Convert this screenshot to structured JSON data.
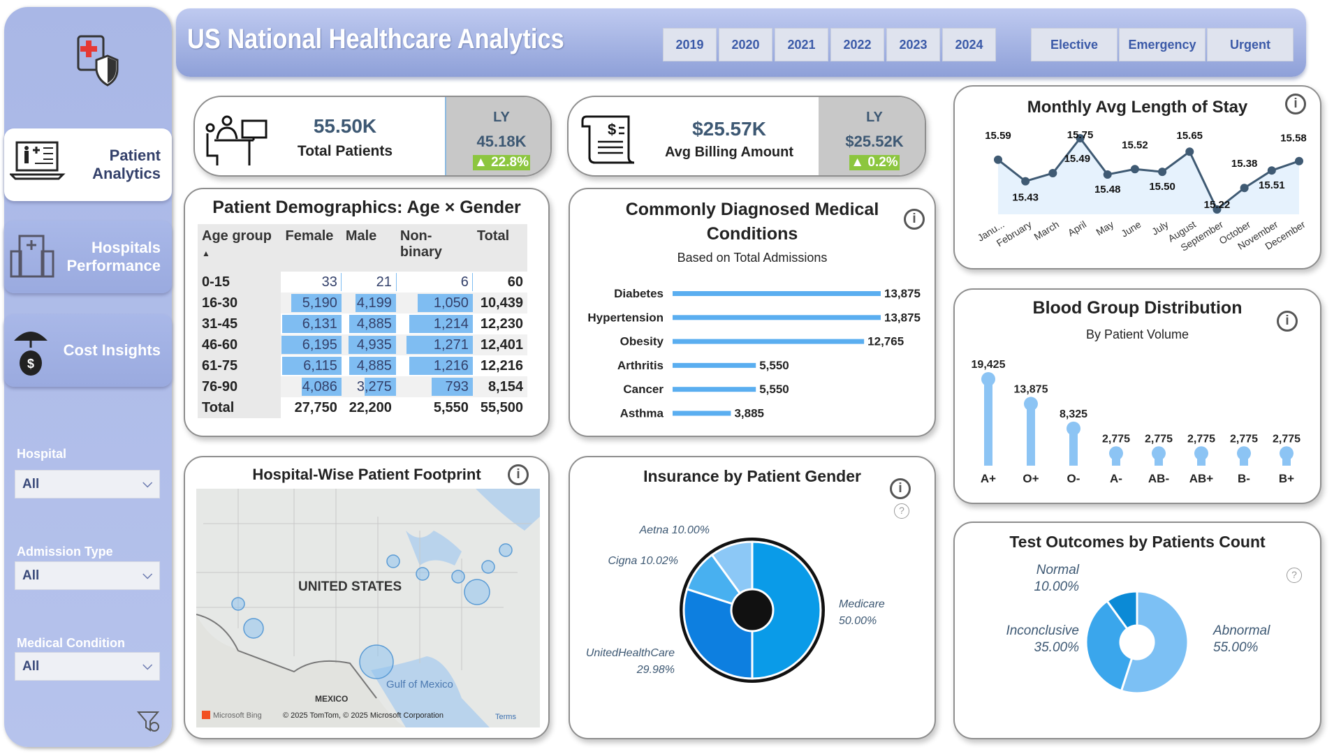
{
  "header": {
    "title": "US National Healthcare Analytics",
    "years": [
      "2019",
      "2020",
      "2021",
      "2022",
      "2023",
      "2024"
    ],
    "admission_types": [
      "Elective",
      "Emergency",
      "Urgent"
    ]
  },
  "sidebar": {
    "nav": [
      {
        "label": "Patient Analytics",
        "active": true
      },
      {
        "label": "Hospitals Performance",
        "active": false
      },
      {
        "label": "Cost Insights",
        "active": false
      }
    ],
    "filters": [
      {
        "label": "Hospital",
        "value": "All"
      },
      {
        "label": "Admission Type",
        "value": "All"
      },
      {
        "label": "Medical Condition",
        "value": "All"
      }
    ]
  },
  "kpis": [
    {
      "value": "55.50K",
      "label": "Total Patients",
      "ly_label": "LY",
      "ly_value": "45.18K",
      "change": "▲ 22.8%"
    },
    {
      "value": "$25.57K",
      "label": "Avg Billing Amount",
      "ly_label": "LY",
      "ly_value": "$25.52K",
      "change": "▲ 0.2%"
    }
  ],
  "colors": {
    "accent": "#5aaef0",
    "positive": "#8cc63f",
    "line": "#3f5a73",
    "area": "#e6f2fd"
  },
  "demographics": {
    "title": "Patient Demographics: Age × Gender",
    "columns": [
      "Age group",
      "Female",
      "Male",
      "Non-binary",
      "Total"
    ],
    "rows": [
      [
        "0-15",
        "33",
        "21",
        "6",
        "60"
      ],
      [
        "16-30",
        "5,190",
        "4,199",
        "1,050",
        "10,439"
      ],
      [
        "31-45",
        "6,131",
        "4,885",
        "1,214",
        "12,230"
      ],
      [
        "46-60",
        "6,195",
        "4,935",
        "1,271",
        "12,401"
      ],
      [
        "61-75",
        "6,115",
        "4,885",
        "1,216",
        "12,216"
      ],
      [
        "76-90",
        "4,086",
        "3,275",
        "793",
        "8,154"
      ]
    ],
    "total": [
      "Total",
      "27,750",
      "22,200",
      "5,550",
      "55,500"
    ]
  },
  "chart_data": [
    {
      "type": "line",
      "title": "Monthly Avg Length of Stay",
      "categories": [
        "Janu...",
        "February",
        "March",
        "April",
        "May",
        "June",
        "July",
        "August",
        "September",
        "October",
        "November",
        "December"
      ],
      "values": [
        15.59,
        15.43,
        15.49,
        15.75,
        15.48,
        15.52,
        15.5,
        15.65,
        15.22,
        15.38,
        15.51,
        15.58
      ]
    },
    {
      "type": "bar",
      "orientation": "horizontal",
      "title": "Commonly Diagnosed Medical Conditions",
      "subtitle": "Based on Total Admissions",
      "categories": [
        "Diabetes",
        "Hypertension",
        "Obesity",
        "Arthritis",
        "Cancer",
        "Asthma"
      ],
      "values": [
        13875,
        13875,
        12765,
        5550,
        5550,
        3885
      ],
      "labels": [
        "13,875",
        "13,875",
        "12,765",
        "5,550",
        "5,550",
        "3,885"
      ]
    },
    {
      "type": "bar",
      "title": "Blood Group Distribution",
      "subtitle": "By Patient Volume",
      "categories": [
        "A+",
        "O+",
        "O-",
        "A-",
        "AB-",
        "AB+",
        "B-",
        "B+"
      ],
      "values": [
        19425,
        13875,
        8325,
        2775,
        2775,
        2775,
        2775,
        2775
      ],
      "labels": [
        "19,425",
        "13,875",
        "8,325",
        "2,775",
        "2,775",
        "2,775",
        "2,775",
        "2,775"
      ]
    },
    {
      "type": "pie",
      "title": "Insurance by Patient Gender",
      "categories": [
        "Medicare",
        "UnitedHealthCare",
        "Cigna",
        "Aetna"
      ],
      "values": [
        50.0,
        29.98,
        10.02,
        10.0
      ],
      "labels": [
        "50.00%",
        "29.98%",
        "10.02%",
        "10.00%"
      ]
    },
    {
      "type": "pie",
      "title": "Test Outcomes by Patients Count",
      "categories": [
        "Abnormal",
        "Inconclusive",
        "Normal"
      ],
      "values": [
        55,
        35,
        10
      ],
      "labels": [
        "55.00%",
        "35.00%",
        "10.00%"
      ]
    }
  ],
  "map": {
    "title": "Hospital-Wise Patient Footprint",
    "country": "UNITED STATES",
    "gulf": "Gulf of Mexico",
    "mexico": "MEXICO",
    "brand": "Microsoft Bing",
    "attribution": "© 2025 TomTom, © 2025 Microsoft Corporation",
    "terms": "Terms"
  }
}
